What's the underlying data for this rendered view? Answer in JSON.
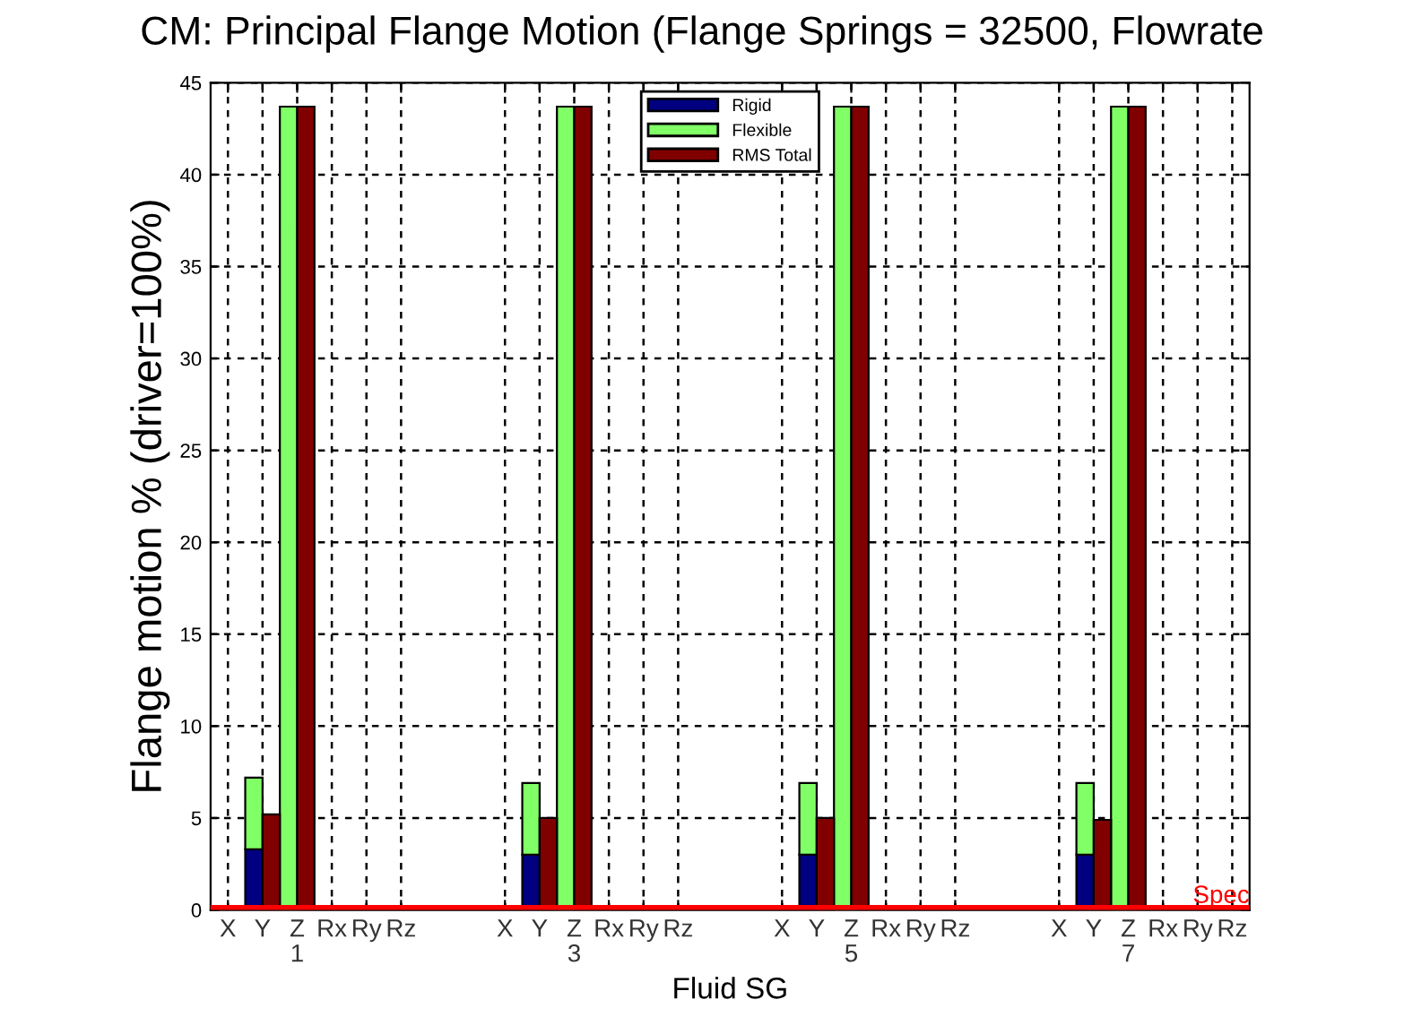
{
  "chart_data": {
    "type": "bar",
    "title": "CM: Principal Flange Motion (Flange Springs = 32500, Flowrate",
    "xlabel": "Fluid SG",
    "ylabel": "Flange motion % (driver=100%)",
    "categories": [
      "X",
      "Y",
      "Z\n1",
      "Rx",
      "Ry",
      "Rz",
      null,
      null,
      "X",
      "Y",
      "Z\n3",
      "Rx",
      "Ry",
      "Rz",
      null,
      null,
      "X",
      "Y",
      "Z\n5",
      "Rx",
      "Ry",
      "Rz",
      null,
      null,
      "X",
      "Y",
      "Z\n7",
      "Rx",
      "Ry",
      "Rz"
    ],
    "series": [
      {
        "name": "Rigid",
        "color": "#000080",
        "values": [
          null,
          3.3,
          null,
          null,
          null,
          null,
          null,
          null,
          null,
          3.0,
          null,
          null,
          null,
          null,
          null,
          null,
          null,
          3.0,
          null,
          null,
          null,
          null,
          null,
          null,
          null,
          3.0,
          null,
          null,
          null,
          null
        ]
      },
      {
        "name": "Flexible",
        "color": "#80ff66",
        "values": [
          null,
          3.9,
          43.7,
          null,
          null,
          null,
          null,
          null,
          null,
          3.9,
          43.7,
          null,
          null,
          null,
          null,
          null,
          null,
          3.9,
          43.7,
          null,
          null,
          null,
          null,
          null,
          null,
          3.9,
          43.7,
          null,
          null,
          null
        ],
        "base": [
          null,
          3.3,
          0,
          null,
          null,
          null,
          null,
          null,
          null,
          3.0,
          0,
          null,
          null,
          null,
          null,
          null,
          null,
          3.0,
          0,
          null,
          null,
          null,
          null,
          null,
          null,
          3.0,
          0,
          null,
          null,
          null
        ]
      },
      {
        "name": "RMS Total",
        "color": "#800000",
        "values": [
          null,
          5.2,
          43.7,
          null,
          null,
          null,
          null,
          null,
          null,
          5.0,
          43.7,
          null,
          null,
          null,
          null,
          null,
          null,
          5.0,
          43.7,
          null,
          null,
          null,
          null,
          null,
          null,
          4.9,
          43.7,
          null,
          null,
          null
        ]
      }
    ],
    "ylim": [
      0,
      45
    ],
    "yticks": [
      0,
      5,
      10,
      15,
      20,
      25,
      30,
      35,
      40,
      45
    ],
    "ref_lines": [
      {
        "axis": "y",
        "value": 0.1,
        "label": "Spec",
        "color": "#ff0000"
      }
    ],
    "grid": true,
    "legend": "top"
  }
}
